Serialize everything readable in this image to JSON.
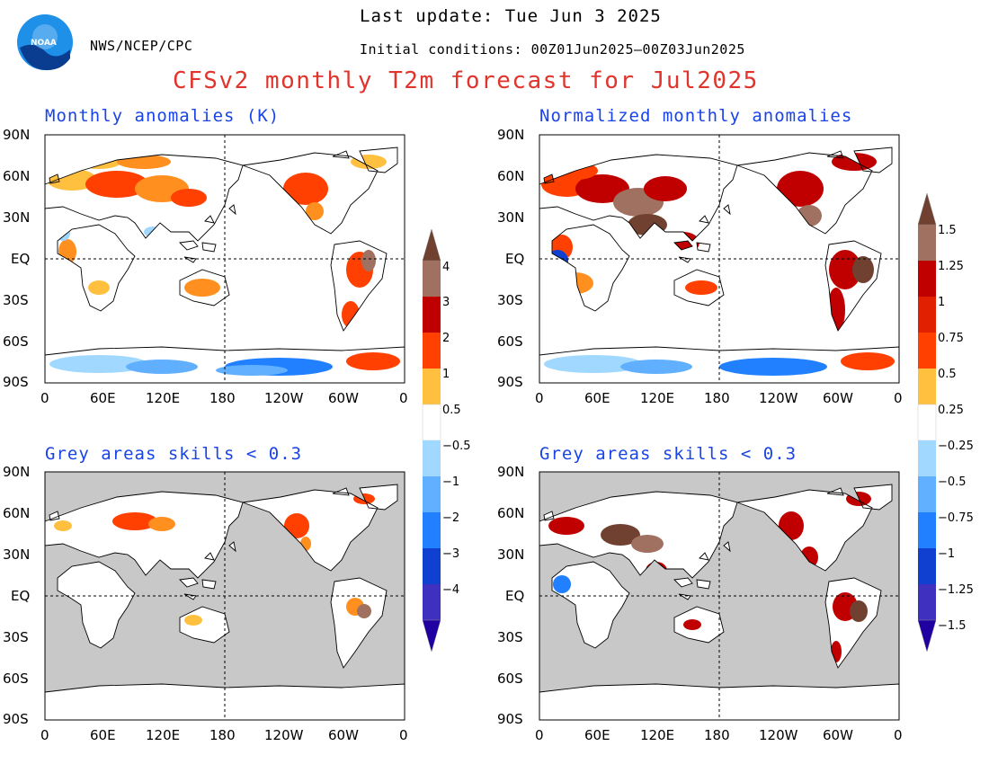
{
  "header": {
    "org": "NWS/NCEP/CPC",
    "last_update": "Last update: Tue Jun 3 2025",
    "initial_conditions": "Initial conditions: 00Z01Jun2025–00Z03Jun2025",
    "title": "CFSv2 monthly T2m forecast for Jul2025",
    "logo_text": "NOAA"
  },
  "panels": {
    "top_left": {
      "title": "Monthly anomalies (K)"
    },
    "top_right": {
      "title": "Normalized monthly anomalies"
    },
    "bottom_left": {
      "title": "Grey areas skills < 0.3"
    },
    "bottom_right": {
      "title": "Grey areas skills < 0.3"
    }
  },
  "axes": {
    "lat_labels": [
      "90N",
      "60N",
      "30N",
      "EQ",
      "30S",
      "60S",
      "90S"
    ],
    "lon_labels": [
      "0",
      "60E",
      "120E",
      "180",
      "120W",
      "60W",
      "0"
    ]
  },
  "colorbar_left": {
    "labels": [
      "4",
      "3",
      "2",
      "1",
      "0.5",
      "−0.5",
      "−1",
      "−2",
      "−3",
      "−4"
    ]
  },
  "colorbar_right": {
    "labels": [
      "1.5",
      "1.25",
      "1",
      "0.75",
      "0.5",
      "0.25",
      "−0.25",
      "−0.5",
      "−0.75",
      "−1",
      "−1.25",
      "−1.5"
    ]
  },
  "colors": {
    "title_red": "#e0342c",
    "panel_blue": "#1a44e6",
    "skill_grey": "#c8c8c8",
    "warm": [
      "#ffc040",
      "#ff9020",
      "#ff4000",
      "#c00000",
      "#a07060",
      "#704030"
    ],
    "cool": [
      "#a0d8ff",
      "#60b0ff",
      "#2080ff",
      "#1040d0",
      "#4030c0",
      "#2000a0"
    ]
  }
}
